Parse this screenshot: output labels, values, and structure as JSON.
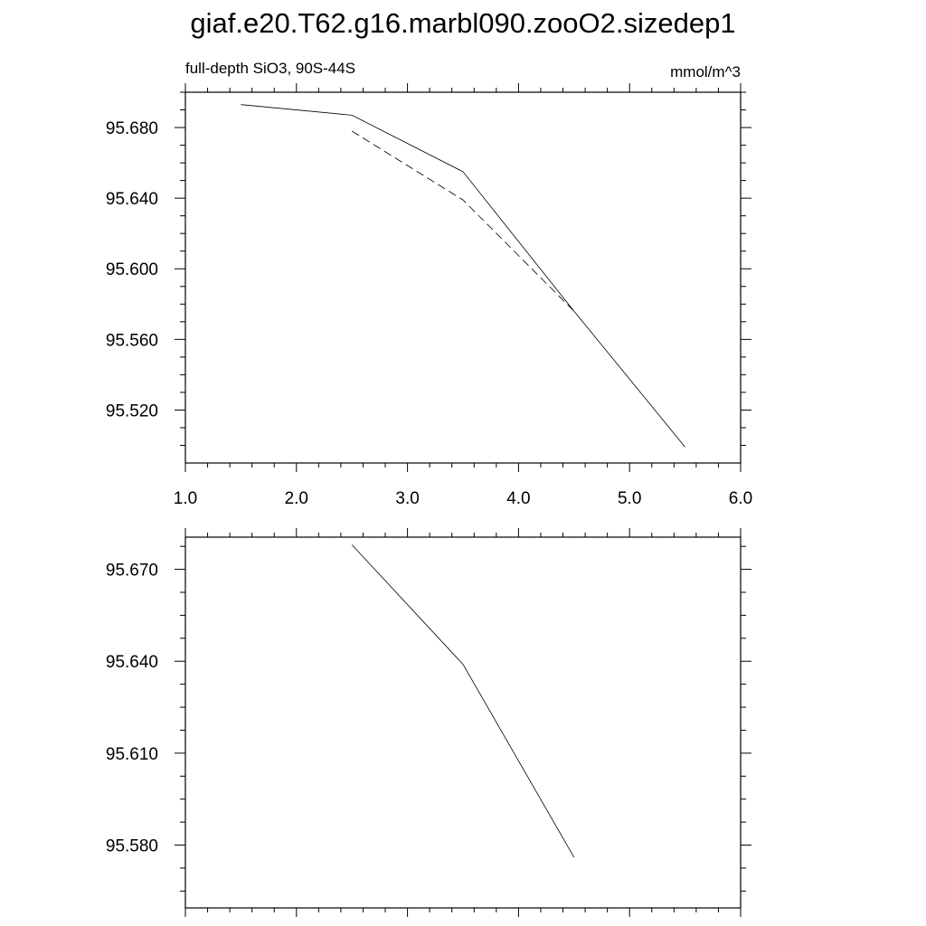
{
  "title": "giaf.e20.T62.g16.marbl090.zooO2.sizedep1",
  "chart_data": [
    {
      "type": "line",
      "left_label": "full-depth SiO3, 90S-44S",
      "right_label": "mmol/m^3",
      "xlim": [
        1.0,
        6.0
      ],
      "ylim": [
        95.49,
        95.7
      ],
      "x_ticks": [
        1.0,
        2.0,
        3.0,
        4.0,
        5.0,
        6.0
      ],
      "x_tick_labels": [
        "1.0",
        "2.0",
        "3.0",
        "4.0",
        "5.0",
        "6.0"
      ],
      "y_ticks": [
        95.52,
        95.56,
        95.6,
        95.64,
        95.68
      ],
      "y_tick_labels": [
        "95.520",
        "95.560",
        "95.600",
        "95.640",
        "95.680"
      ],
      "grid": false,
      "series": [
        {
          "style": "solid",
          "x": [
            1.5,
            2.5,
            3.5,
            4.5,
            5.5
          ],
          "y": [
            95.693,
            95.687,
            95.655,
            95.576,
            95.499
          ]
        },
        {
          "style": "dashed",
          "x": [
            2.5,
            3.5,
            4.5
          ],
          "y": [
            95.678,
            95.639,
            95.576
          ]
        }
      ]
    },
    {
      "type": "line",
      "xlim": [
        1.0,
        6.0
      ],
      "ylim": [
        95.5595,
        95.6805
      ],
      "x_ticks": [
        1.0,
        2.0,
        3.0,
        4.0,
        5.0,
        6.0
      ],
      "y_ticks": [
        95.58,
        95.61,
        95.64,
        95.67
      ],
      "y_tick_labels": [
        "95.580",
        "95.610",
        "95.640",
        "95.670"
      ],
      "grid": false,
      "series": [
        {
          "style": "solid",
          "x": [
            2.5,
            3.5,
            4.5
          ],
          "y": [
            95.678,
            95.639,
            95.576
          ]
        }
      ]
    }
  ]
}
